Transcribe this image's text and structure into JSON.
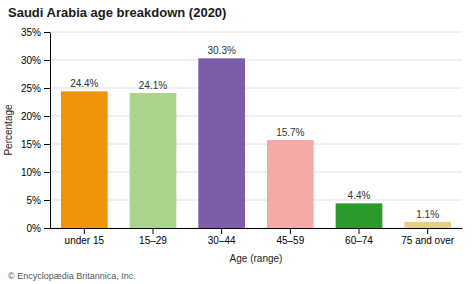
{
  "chart_data": {
    "type": "bar",
    "title": "Saudi Arabia age breakdown (2020)",
    "categories": [
      "under 15",
      "15–29",
      "30–44",
      "45–59",
      "60–74",
      "75 and over"
    ],
    "values": [
      24.4,
      24.1,
      30.3,
      15.7,
      4.4,
      1.1
    ],
    "value_labels": [
      "24.4%",
      "24.1%",
      "30.3%",
      "15.7%",
      "4.4%",
      "1.1%"
    ],
    "data_labels": true,
    "colors": [
      "#f0920a",
      "#aad48a",
      "#7b5ea7",
      "#f5aaa8",
      "#2a9a2a",
      "#e8d080"
    ],
    "xlabel": "Age (range)",
    "ylabel": "Percentage",
    "ylim": [
      0,
      35
    ],
    "yticks": [
      {
        "value": 0,
        "label": "0%"
      },
      {
        "value": 5,
        "label": "5%"
      },
      {
        "value": 10,
        "label": "10%"
      },
      {
        "value": 15,
        "label": "15%"
      },
      {
        "value": 20,
        "label": "20%"
      },
      {
        "value": 25,
        "label": "25%"
      },
      {
        "value": 30,
        "label": "30%"
      },
      {
        "value": 35,
        "label": "35%"
      }
    ],
    "grid": true,
    "annotations": [
      "© Encyclopædia Britannica, Inc."
    ]
  }
}
